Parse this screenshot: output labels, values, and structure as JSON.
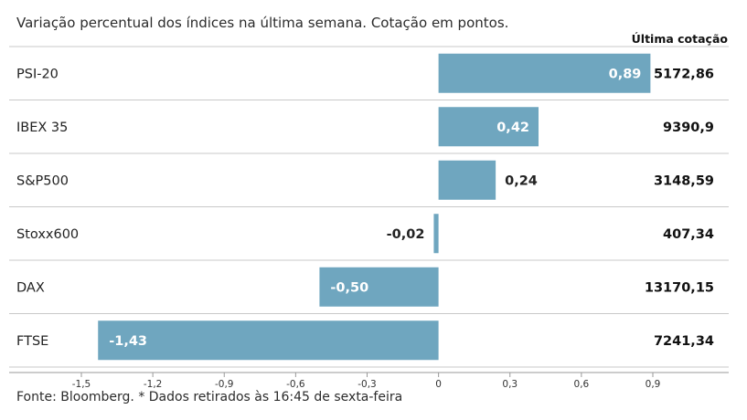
{
  "subtitle": "Variação percentual dos índices na última semana. Cotação em pontos.",
  "column_header": "Última cotação",
  "source": "Fonte: Bloomberg.  * Dados retirados às 16:45 de sexta-feira",
  "colors": {
    "bar": "#6fa6bf",
    "grid": "#c8c8c8",
    "axis": "#9a9a9a",
    "text": "#222222",
    "label_inside": "#ffffff"
  },
  "chart_data": {
    "type": "bar",
    "orientation": "horizontal",
    "categories": [
      "PSI-20",
      "IBEX 35",
      "S&P500",
      "Stoxx600",
      "DAX",
      "FTSE"
    ],
    "values": [
      0.89,
      0.42,
      0.24,
      -0.02,
      -0.5,
      -1.43
    ],
    "value_labels": [
      "0,89",
      "0,42",
      "0,24",
      "-0,02",
      "-0,50",
      "-1,43"
    ],
    "last_quote": [
      "5172,86",
      "9390,9",
      "3148,59",
      "407,34",
      "13170,15",
      "7241,34"
    ],
    "xlim": [
      -1.5,
      0.9
    ],
    "xticks": [
      -1.5,
      -1.2,
      -0.9,
      -0.6,
      -0.3,
      0,
      0.3,
      0.6,
      0.9
    ],
    "xtick_labels": [
      "-1,5",
      "-1,2",
      "-0,9",
      "-0,6",
      "-0,3",
      "0",
      "0,3",
      "0,6",
      "0,9"
    ],
    "grid": true
  }
}
